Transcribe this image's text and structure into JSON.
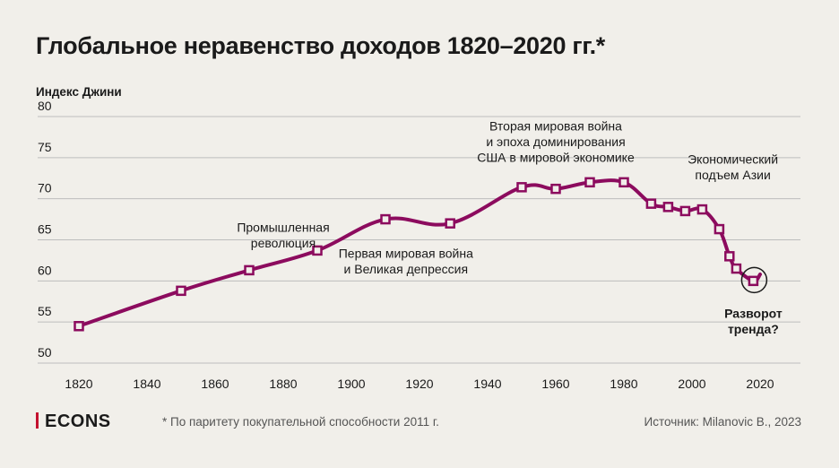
{
  "title": "Глобальное неравенство доходов 1820–2020 гг.*",
  "ylabel": "Индекс Джини",
  "footnote": "* По паритету покупательной способности 2011 г.",
  "source": "Источник: Milanovic B., 2023",
  "brand": "ECONS",
  "colors": {
    "line": "#8c0b5e",
    "marker_fill": "#f1efea",
    "grid": "#bdbdbd",
    "text": "#1a1a1a",
    "brand_bar": "#c4122f"
  },
  "chart_data": {
    "type": "line",
    "title": "Глобальное неравенство доходов 1820–2020 гг.*",
    "ylabel": "Индекс Джини",
    "xlabel": "",
    "xlim": [
      1820,
      2020
    ],
    "ylim": [
      50,
      80
    ],
    "xticks": [
      1820,
      1840,
      1860,
      1880,
      1900,
      1920,
      1940,
      1960,
      1980,
      2000,
      2020
    ],
    "yticks": [
      50,
      55,
      60,
      65,
      70,
      75,
      80
    ],
    "grid": true,
    "series": [
      {
        "points": [
          [
            1820,
            54.5
          ],
          [
            1850,
            58.8
          ],
          [
            1870,
            61.3
          ],
          [
            1890,
            63.7
          ],
          [
            1910,
            67.5
          ],
          [
            1929,
            67.0
          ],
          [
            1950,
            71.4
          ],
          [
            1960,
            71.2
          ],
          [
            1970,
            72.0
          ],
          [
            1980,
            72.0
          ],
          [
            1988,
            69.4
          ],
          [
            1993,
            69.0
          ],
          [
            1998,
            68.5
          ],
          [
            2003,
            68.7
          ],
          [
            2008,
            66.3
          ],
          [
            2011,
            63.0
          ],
          [
            2013,
            61.5
          ],
          [
            2018,
            60.0
          ]
        ],
        "line_extends_to": [
          2020,
          60.8
        ]
      }
    ],
    "annotations": [
      {
        "lines": [
          "Промышленная",
          "революция"
        ],
        "x": 1880,
        "y": 66.0
      },
      {
        "lines": [
          "Первая мировая война",
          "и Великая депрессия"
        ],
        "x": 1916,
        "y": 62.8
      },
      {
        "lines": [
          "Вторая мировая война",
          "и эпоха доминирования",
          "США в мировой экономике"
        ],
        "x": 1960,
        "y": 78.3
      },
      {
        "lines": [
          "Экономический",
          "подъем Азии"
        ],
        "x": 2012,
        "y": 74.3
      },
      {
        "lines": [
          "Разворот",
          "тренда?"
        ],
        "x": 2018,
        "y": 55.5,
        "bold": true
      }
    ],
    "highlight_point": [
      2018,
      60.0
    ]
  }
}
